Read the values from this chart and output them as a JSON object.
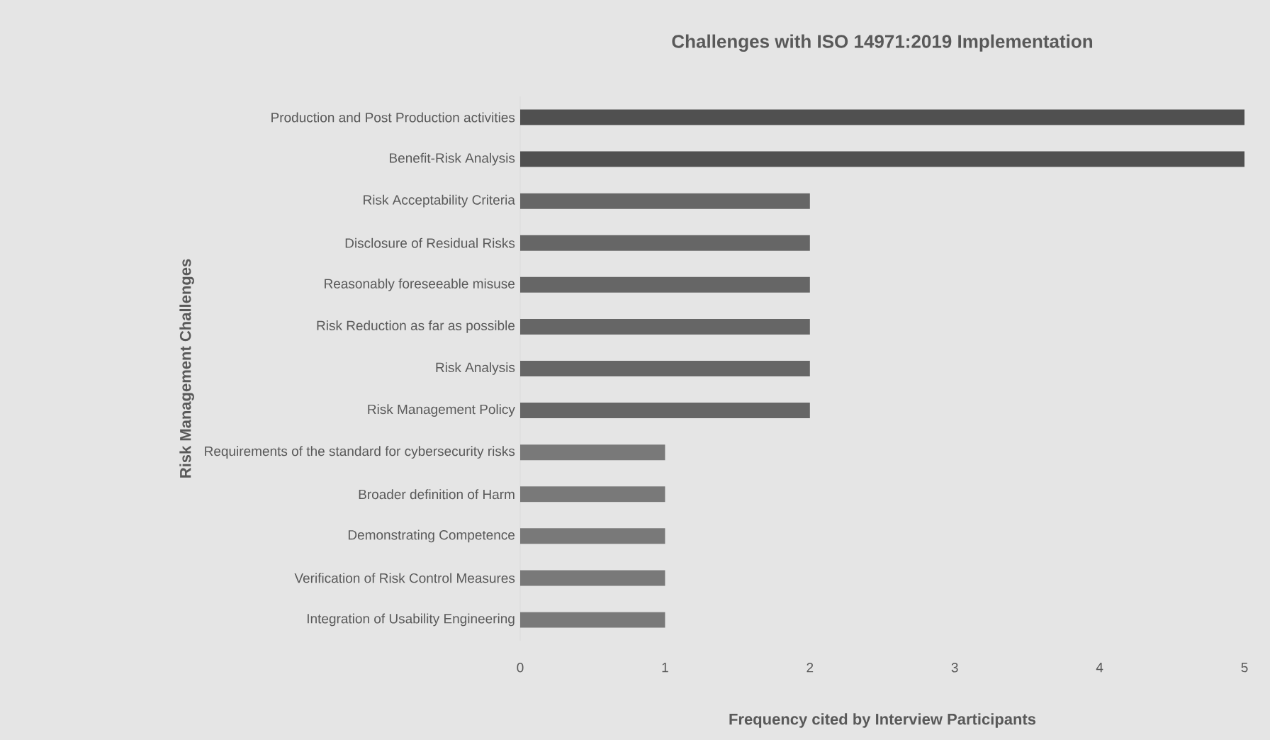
{
  "chart_data": {
    "type": "bar",
    "orientation": "horizontal",
    "title": "Challenges with ISO 14971:2019 Implementation",
    "xlabel": "Frequency cited by Interview Participants",
    "ylabel": "Risk Management  Challenges",
    "categories": [
      "Production and Post Production activities",
      "Benefit-Risk Analysis",
      "Risk Acceptability Criteria",
      "Disclosure of Residual Risks",
      "Reasonably foreseeable misuse",
      "Risk Reduction as far as possible",
      "Risk Analysis",
      "Risk Management Policy",
      "Requirements of the standard for cybersecurity risks",
      "Broader definition of Harm",
      "Demonstrating Competence",
      "Verification of Risk Control Measures",
      "Integration of Usability Engineering"
    ],
    "values": [
      5,
      5,
      2,
      2,
      2,
      2,
      2,
      2,
      1,
      1,
      1,
      1,
      1
    ],
    "colors": [
      "#505050",
      "#505050",
      "#666666",
      "#666666",
      "#666666",
      "#666666",
      "#666666",
      "#666666",
      "#797979",
      "#797979",
      "#797979",
      "#797979",
      "#797979"
    ],
    "xlim": [
      0,
      5
    ],
    "xticks": [
      0,
      1,
      2,
      3,
      4,
      5
    ]
  }
}
